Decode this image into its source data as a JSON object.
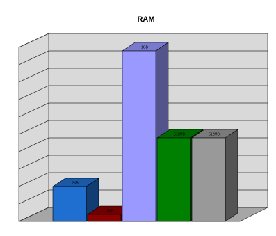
{
  "chart_data": {
    "type": "bar3d",
    "title": "RAM",
    "categories": [
      null,
      null,
      null,
      null,
      null
    ],
    "values": [
      2,
      0.4,
      9.8,
      4.8,
      4.8
    ],
    "value_labels": [
      "2KB",
      "1MB",
      "1GB",
      "512MB",
      "512MB"
    ],
    "colors": [
      "#1f6fd0",
      "#8b0000",
      "#9999ff",
      "#008000",
      "#999999"
    ],
    "ylim": [
      0,
      10
    ],
    "yticks": [
      0,
      1,
      2,
      3,
      4,
      5,
      6,
      7,
      8,
      9,
      10
    ],
    "grid": true
  }
}
